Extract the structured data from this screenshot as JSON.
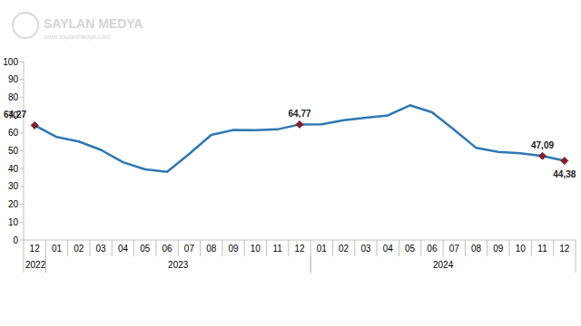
{
  "chart_data": {
    "type": "line",
    "categories": [
      "12",
      "01",
      "02",
      "03",
      "04",
      "05",
      "06",
      "07",
      "08",
      "09",
      "10",
      "11",
      "12",
      "01",
      "02",
      "03",
      "04",
      "05",
      "06",
      "07",
      "08",
      "09",
      "10",
      "11",
      "12"
    ],
    "x_groups": [
      {
        "label": "2022",
        "count": 1
      },
      {
        "label": "2023",
        "count": 12
      },
      {
        "label": "2024",
        "count": 12
      }
    ],
    "values": [
      64.27,
      57.7,
      55.2,
      50.5,
      43.6,
      39.6,
      38.2,
      48.2,
      58.9,
      61.7,
      61.6,
      62.0,
      64.77,
      64.9,
      67.1,
      68.5,
      69.8,
      75.5,
      71.6,
      61.8,
      51.6,
      49.4,
      48.6,
      47.09,
      44.38
    ],
    "value_labels": [
      "64,27",
      null,
      null,
      null,
      null,
      null,
      null,
      null,
      null,
      null,
      null,
      null,
      "64,77",
      null,
      null,
      null,
      null,
      null,
      null,
      null,
      null,
      null,
      null,
      "47,09",
      "44,38"
    ],
    "data_labels": true,
    "color": "#2e78b3",
    "marker": "diamond",
    "ylim": [
      0,
      100
    ],
    "yticks": [
      0,
      10,
      20,
      30,
      40,
      50,
      60,
      70,
      80,
      90,
      100
    ],
    "grid": false,
    "watermark": {
      "title": "SAYLAN MEDYA",
      "url": "www.saylanmedya.com"
    }
  }
}
